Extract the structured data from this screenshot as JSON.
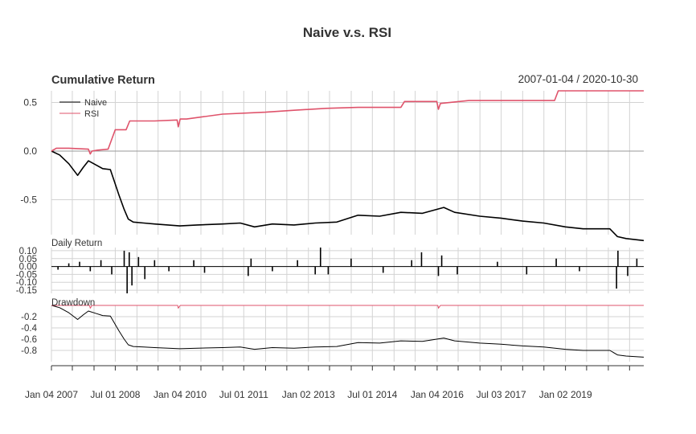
{
  "title": "Naive v.s. RSI",
  "date_range": "2007-01-04 / 2020-10-30",
  "colors": {
    "naive": "#000000",
    "rsi": "#DF536B",
    "grid": "#D3D3D3",
    "text": "#333333"
  },
  "chart_data": [
    {
      "type": "line",
      "panel": "cumulative",
      "title": "Cumulative Return",
      "legend_position": "top-left",
      "ylim": [
        -0.86,
        0.62
      ],
      "yticks": [
        "0.5",
        "0.0",
        "-0.5"
      ],
      "yticks_values": [
        0.5,
        0.0,
        -0.5
      ],
      "series": [
        {
          "name": "Naive",
          "points": [
            [
              "2007-01-04",
              0.0
            ],
            [
              "2007-03-15",
              -0.04
            ],
            [
              "2007-06-01",
              -0.13
            ],
            [
              "2007-08-15",
              -0.25
            ],
            [
              "2007-10-01",
              -0.17
            ],
            [
              "2007-11-15",
              -0.1
            ],
            [
              "2008-01-15",
              -0.14
            ],
            [
              "2008-03-15",
              -0.18
            ],
            [
              "2008-05-20",
              -0.19
            ],
            [
              "2008-06-20",
              -0.3
            ],
            [
              "2008-08-01",
              -0.45
            ],
            [
              "2008-09-15",
              -0.6
            ],
            [
              "2008-10-20",
              -0.7
            ],
            [
              "2008-12-01",
              -0.73
            ],
            [
              "2009-03-01",
              -0.74
            ],
            [
              "2009-06-01",
              -0.75
            ],
            [
              "2010-01-01",
              -0.77
            ],
            [
              "2010-06-01",
              -0.76
            ],
            [
              "2011-01-01",
              -0.75
            ],
            [
              "2011-06-01",
              -0.74
            ],
            [
              "2011-10-01",
              -0.78
            ],
            [
              "2012-03-01",
              -0.75
            ],
            [
              "2012-09-01",
              -0.76
            ],
            [
              "2013-03-01",
              -0.74
            ],
            [
              "2013-09-01",
              -0.73
            ],
            [
              "2014-03-01",
              -0.66
            ],
            [
              "2014-09-01",
              -0.67
            ],
            [
              "2015-03-01",
              -0.63
            ],
            [
              "2015-09-01",
              -0.64
            ],
            [
              "2016-03-01",
              -0.58
            ],
            [
              "2016-06-01",
              -0.63
            ],
            [
              "2017-01-01",
              -0.67
            ],
            [
              "2017-07-01",
              -0.69
            ],
            [
              "2018-01-01",
              -0.72
            ],
            [
              "2018-07-01",
              -0.74
            ],
            [
              "2019-01-01",
              -0.78
            ],
            [
              "2019-06-01",
              -0.8
            ],
            [
              "2020-01-15",
              -0.8
            ],
            [
              "2020-03-20",
              -0.88
            ],
            [
              "2020-06-01",
              -0.9
            ],
            [
              "2020-10-30",
              -0.92
            ]
          ]
        },
        {
          "name": "RSI",
          "points": [
            [
              "2007-01-04",
              0.0
            ],
            [
              "2007-02-15",
              0.03
            ],
            [
              "2007-06-01",
              0.03
            ],
            [
              "2007-11-15",
              0.02
            ],
            [
              "2007-12-01",
              -0.03
            ],
            [
              "2007-12-15",
              0.0
            ],
            [
              "2008-02-01",
              0.01
            ],
            [
              "2008-05-01",
              0.02
            ],
            [
              "2008-07-01",
              0.22
            ],
            [
              "2008-10-01",
              0.22
            ],
            [
              "2008-11-01",
              0.31
            ],
            [
              "2009-06-01",
              0.31
            ],
            [
              "2009-12-10",
              0.32
            ],
            [
              "2009-12-20",
              0.25
            ],
            [
              "2010-01-05",
              0.33
            ],
            [
              "2010-03-01",
              0.33
            ],
            [
              "2011-01-01",
              0.38
            ],
            [
              "2012-01-01",
              0.4
            ],
            [
              "2012-09-01",
              0.42
            ],
            [
              "2013-06-01",
              0.44
            ],
            [
              "2014-03-01",
              0.45
            ],
            [
              "2015-03-01",
              0.45
            ],
            [
              "2015-04-01",
              0.51
            ],
            [
              "2016-01-01",
              0.51
            ],
            [
              "2016-01-15",
              0.43
            ],
            [
              "2016-02-01",
              0.49
            ],
            [
              "2016-10-01",
              0.52
            ],
            [
              "2018-10-01",
              0.52
            ],
            [
              "2018-11-01",
              0.62
            ],
            [
              "2020-10-30",
              0.62
            ]
          ]
        }
      ]
    },
    {
      "type": "bar",
      "panel": "daily",
      "title": "Daily Return",
      "ylim": [
        -0.17,
        0.12
      ],
      "yticks": [
        "0.10",
        "0.05",
        "0.00",
        "-0.05",
        "-0.10",
        "-0.15"
      ],
      "yticks_values": [
        0.1,
        0.05,
        0.0,
        -0.05,
        -0.1,
        -0.15
      ],
      "series": [
        {
          "name": "Naive",
          "points": [
            [
              "2007-03-01",
              -0.02
            ],
            [
              "2007-06-01",
              0.02
            ],
            [
              "2007-09-01",
              0.03
            ],
            [
              "2007-12-01",
              -0.03
            ],
            [
              "2008-03-01",
              0.04
            ],
            [
              "2008-06-01",
              -0.05
            ],
            [
              "2008-09-15",
              0.1
            ],
            [
              "2008-10-10",
              -0.17
            ],
            [
              "2008-10-28",
              0.09
            ],
            [
              "2008-11-20",
              -0.12
            ],
            [
              "2009-01-15",
              0.06
            ],
            [
              "2009-03-10",
              -0.08
            ],
            [
              "2009-06-01",
              0.04
            ],
            [
              "2009-10-01",
              -0.03
            ],
            [
              "2010-05-01",
              0.04
            ],
            [
              "2010-08-01",
              -0.04
            ],
            [
              "2011-08-08",
              -0.06
            ],
            [
              "2011-09-01",
              0.05
            ],
            [
              "2012-03-01",
              -0.03
            ],
            [
              "2012-10-01",
              0.04
            ],
            [
              "2013-03-01",
              -0.05
            ],
            [
              "2013-04-15",
              0.12
            ],
            [
              "2013-06-20",
              -0.05
            ],
            [
              "2014-01-01",
              0.05
            ],
            [
              "2014-10-01",
              -0.04
            ],
            [
              "2015-06-01",
              0.04
            ],
            [
              "2015-08-24",
              0.09
            ],
            [
              "2016-01-15",
              -0.06
            ],
            [
              "2016-02-12",
              0.07
            ],
            [
              "2016-06-24",
              -0.05
            ],
            [
              "2017-06-01",
              0.03
            ],
            [
              "2018-02-05",
              -0.05
            ],
            [
              "2018-10-15",
              0.05
            ],
            [
              "2019-05-01",
              -0.03
            ],
            [
              "2020-03-12",
              -0.14
            ],
            [
              "2020-03-24",
              0.1
            ],
            [
              "2020-06-15",
              -0.06
            ],
            [
              "2020-09-01",
              0.05
            ]
          ]
        }
      ]
    },
    {
      "type": "line",
      "panel": "drawdown",
      "title": "Drawdown",
      "ylim": [
        -1.0,
        0.0
      ],
      "yticks": [
        "-0.2",
        "-0.4",
        "-0.6",
        "-0.8"
      ],
      "yticks_values": [
        -0.2,
        -0.4,
        -0.6,
        -0.8
      ],
      "series": [
        {
          "name": "Naive",
          "points": [
            [
              "2007-01-04",
              0.0
            ],
            [
              "2007-03-15",
              -0.04
            ],
            [
              "2007-06-01",
              -0.13
            ],
            [
              "2007-08-15",
              -0.25
            ],
            [
              "2007-10-01",
              -0.17
            ],
            [
              "2007-11-15",
              -0.1
            ],
            [
              "2008-01-15",
              -0.14
            ],
            [
              "2008-03-15",
              -0.18
            ],
            [
              "2008-05-20",
              -0.19
            ],
            [
              "2008-06-20",
              -0.3
            ],
            [
              "2008-08-01",
              -0.45
            ],
            [
              "2008-09-15",
              -0.6
            ],
            [
              "2008-10-20",
              -0.7
            ],
            [
              "2008-12-01",
              -0.73
            ],
            [
              "2009-03-01",
              -0.74
            ],
            [
              "2009-06-01",
              -0.75
            ],
            [
              "2010-01-01",
              -0.77
            ],
            [
              "2010-06-01",
              -0.76
            ],
            [
              "2011-01-01",
              -0.75
            ],
            [
              "2011-06-01",
              -0.74
            ],
            [
              "2011-10-01",
              -0.78
            ],
            [
              "2012-03-01",
              -0.75
            ],
            [
              "2012-09-01",
              -0.76
            ],
            [
              "2013-03-01",
              -0.74
            ],
            [
              "2013-09-01",
              -0.73
            ],
            [
              "2014-03-01",
              -0.66
            ],
            [
              "2014-09-01",
              -0.67
            ],
            [
              "2015-03-01",
              -0.63
            ],
            [
              "2015-09-01",
              -0.64
            ],
            [
              "2016-03-01",
              -0.58
            ],
            [
              "2016-06-01",
              -0.63
            ],
            [
              "2017-01-01",
              -0.67
            ],
            [
              "2017-07-01",
              -0.69
            ],
            [
              "2018-01-01",
              -0.72
            ],
            [
              "2018-07-01",
              -0.74
            ],
            [
              "2019-01-01",
              -0.78
            ],
            [
              "2019-06-01",
              -0.8
            ],
            [
              "2020-01-15",
              -0.8
            ],
            [
              "2020-03-20",
              -0.88
            ],
            [
              "2020-06-01",
              -0.9
            ],
            [
              "2020-10-30",
              -0.92
            ]
          ]
        },
        {
          "name": "RSI",
          "points": [
            [
              "2007-01-04",
              0.0
            ],
            [
              "2007-11-25",
              0.0
            ],
            [
              "2007-12-01",
              -0.05
            ],
            [
              "2007-12-15",
              0.0
            ],
            [
              "2009-12-15",
              0.0
            ],
            [
              "2009-12-20",
              -0.05
            ],
            [
              "2010-01-05",
              0.0
            ],
            [
              "2016-01-10",
              0.0
            ],
            [
              "2016-01-15",
              -0.05
            ],
            [
              "2016-02-01",
              0.0
            ],
            [
              "2020-10-30",
              0.0
            ]
          ]
        }
      ]
    }
  ],
  "xaxis": {
    "range": [
      "2007-01-04",
      "2020-10-30"
    ],
    "ticks": [
      "2007-01-04",
      "2007-07-01",
      "2008-01-02",
      "2008-07-01",
      "2009-01-02",
      "2009-07-01",
      "2010-01-04",
      "2010-07-01",
      "2011-01-03",
      "2011-07-01",
      "2012-01-03",
      "2012-07-02",
      "2013-01-02",
      "2013-07-01",
      "2014-01-02",
      "2014-07-01",
      "2015-01-02",
      "2015-07-01",
      "2016-01-04",
      "2016-07-01",
      "2017-01-03",
      "2017-07-03",
      "2018-01-02",
      "2018-07-02",
      "2019-01-02",
      "2019-07-01",
      "2020-01-02",
      "2020-07-01"
    ],
    "labels": [
      {
        "date": "2007-01-04",
        "text": "Jan 04 2007"
      },
      {
        "date": "2008-07-01",
        "text": "Jul 01 2008"
      },
      {
        "date": "2010-01-04",
        "text": "Jan 04 2010"
      },
      {
        "date": "2011-07-01",
        "text": "Jul 01 2011"
      },
      {
        "date": "2013-01-02",
        "text": "Jan 02 2013"
      },
      {
        "date": "2014-07-01",
        "text": "Jul 01 2014"
      },
      {
        "date": "2016-01-04",
        "text": "Jan 04 2016"
      },
      {
        "date": "2017-07-03",
        "text": "Jul 03 2017"
      },
      {
        "date": "2019-01-02",
        "text": "Jan 02 2019"
      }
    ]
  }
}
